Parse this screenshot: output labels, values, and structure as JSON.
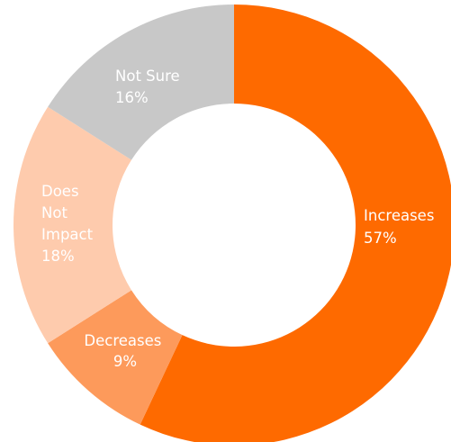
{
  "chart_data": {
    "type": "pie",
    "title": "",
    "donut": true,
    "legend": "none",
    "slices": [
      {
        "label": "Increases",
        "value": 57,
        "value_label": "57%",
        "color": "#fe6a00"
      },
      {
        "label": "Decreases",
        "value": 9,
        "value_label": "9%",
        "color": "#fd9a5b"
      },
      {
        "label": "Does Not Impact",
        "label_lines": [
          "Does",
          "Not",
          "Impact"
        ],
        "value": 18,
        "value_label": "18%",
        "color": "#fecbad"
      },
      {
        "label": "Not Sure",
        "value": 16,
        "value_label": "16%",
        "color": "#c8c8c8"
      }
    ]
  }
}
